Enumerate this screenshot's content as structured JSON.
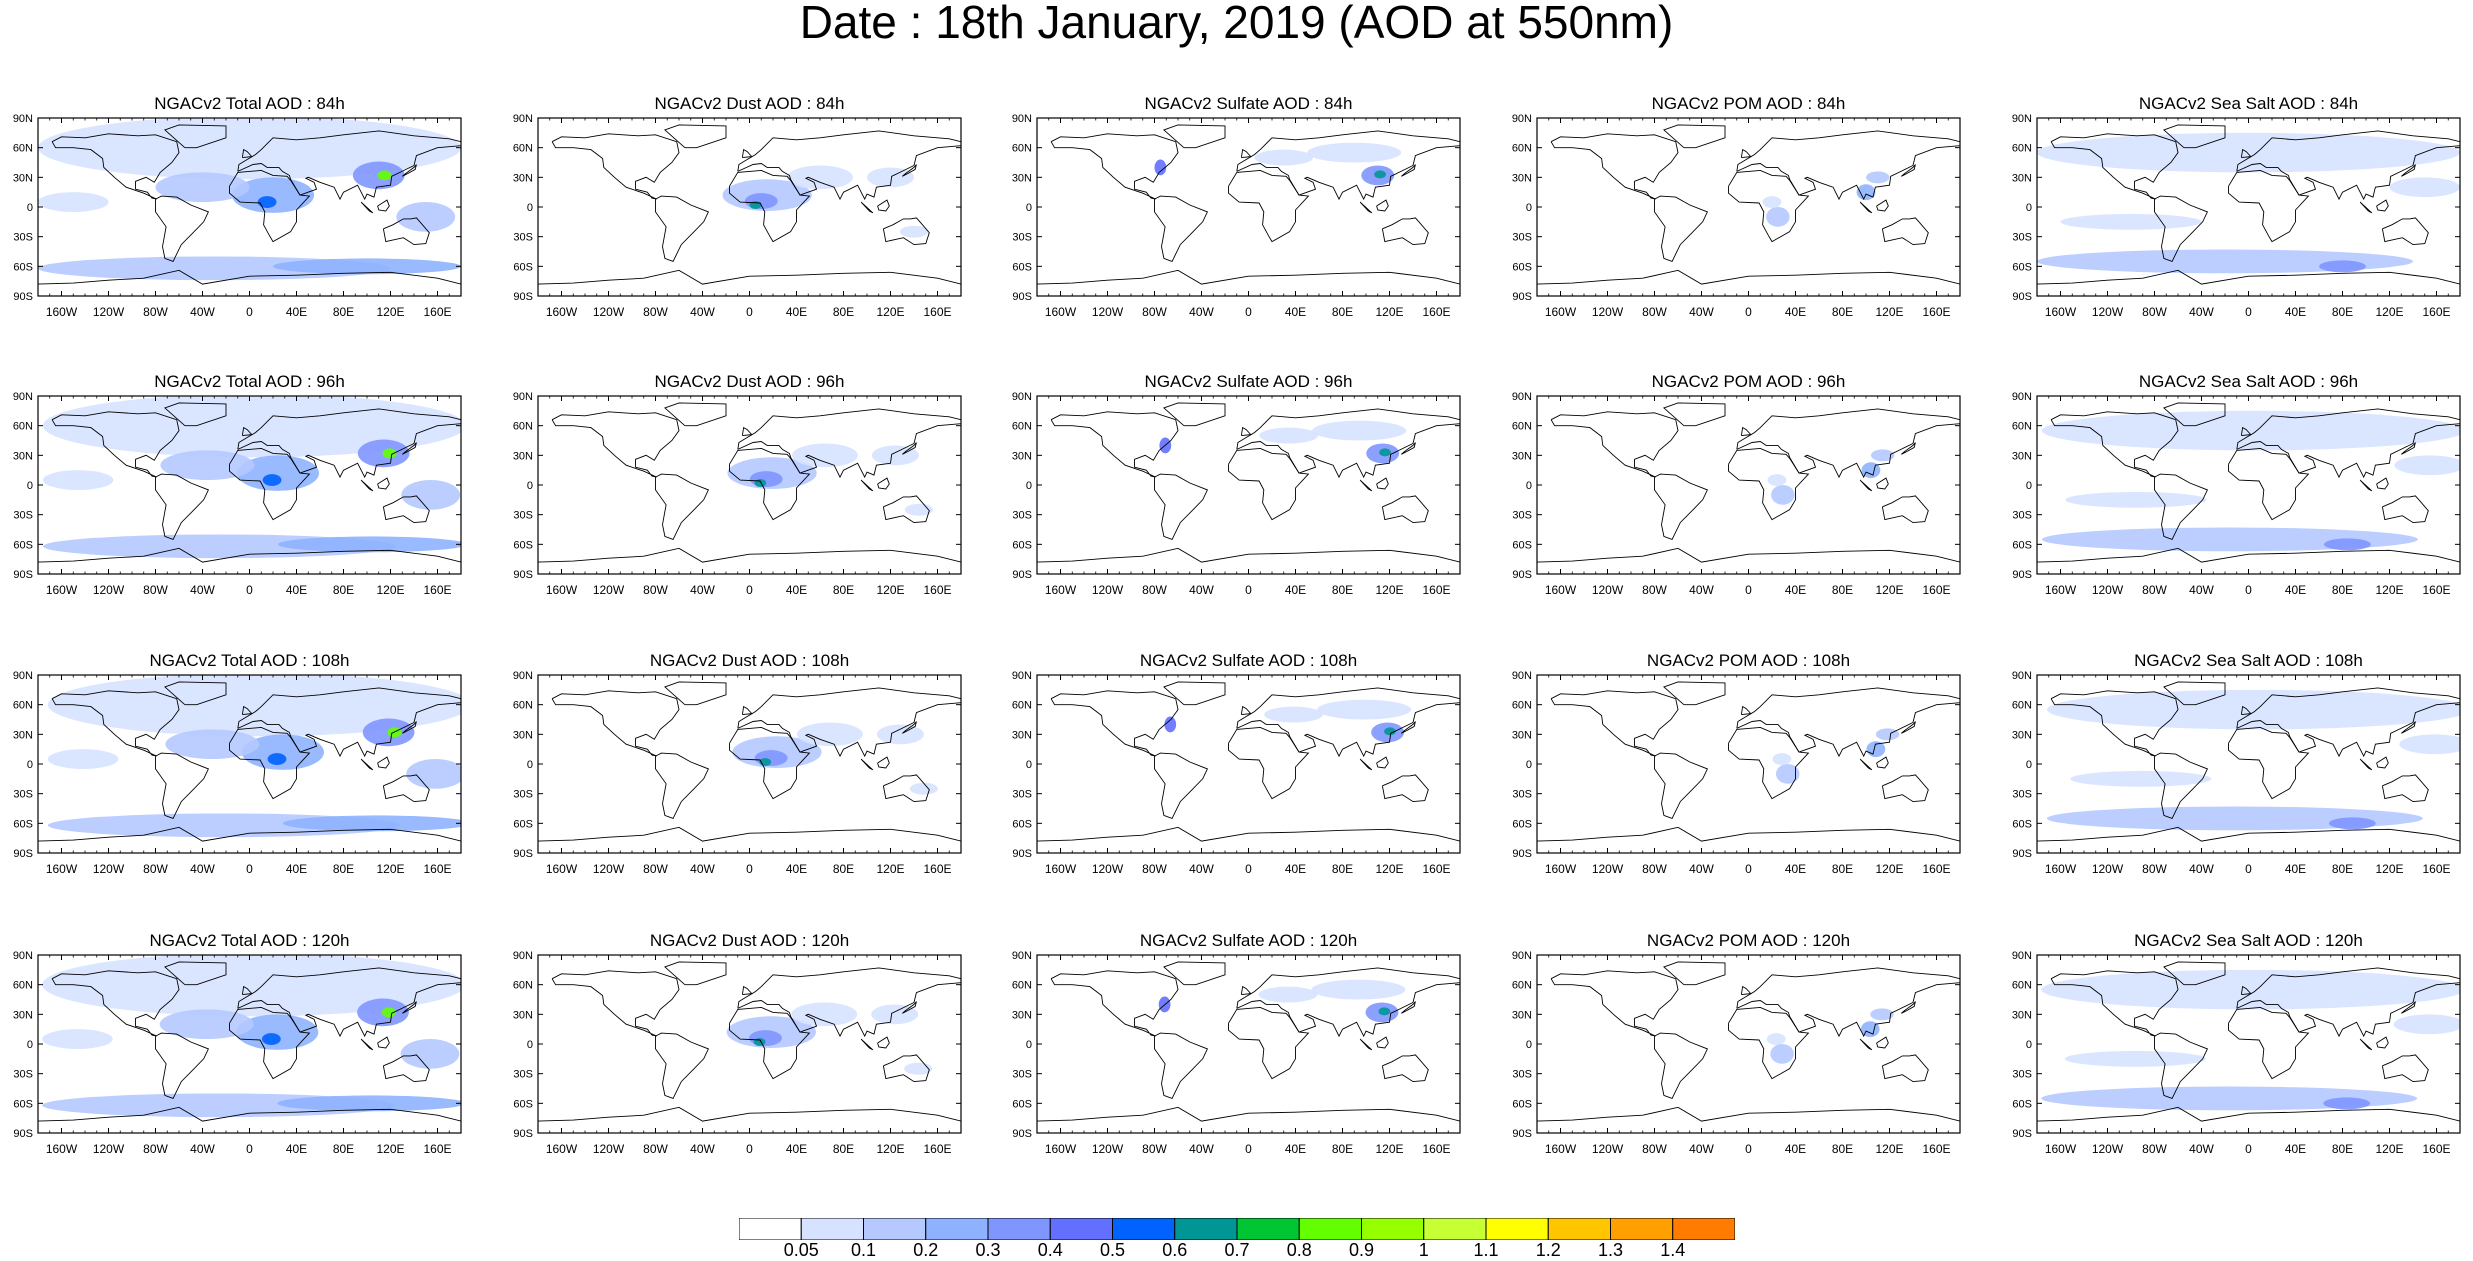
{
  "title": "Date : 18th January, 2019 (AOD at 550nm)",
  "lat_ticks": [
    "90N",
    "60N",
    "30N",
    "0",
    "30S",
    "60S",
    "90S"
  ],
  "lon_ticks": [
    "160W",
    "120W",
    "80W",
    "40W",
    "0",
    "40E",
    "80E",
    "120E",
    "160E"
  ],
  "lon_tick_values": [
    -160,
    -120,
    -80,
    -40,
    0,
    40,
    80,
    120,
    160
  ],
  "lat_tick_values": [
    90,
    60,
    30,
    0,
    -30,
    -60,
    -90
  ],
  "species": [
    "Total",
    "Dust",
    "Sulfate",
    "POM",
    "Sea Salt"
  ],
  "forecast_hours": [
    "84h",
    "96h",
    "108h",
    "120h"
  ],
  "panels": [
    [
      "NGACv2 Total AOD : 84h",
      "NGACv2 Dust AOD : 84h",
      "NGACv2 Sulfate AOD : 84h",
      "NGACv2 POM AOD : 84h",
      "NGACv2 Sea Salt AOD : 84h"
    ],
    [
      "NGACv2 Total AOD : 96h",
      "NGACv2 Dust AOD : 96h",
      "NGACv2 Sulfate AOD : 96h",
      "NGACv2 POM AOD : 96h",
      "NGACv2 Sea Salt AOD : 96h"
    ],
    [
      "NGACv2 Total AOD : 108h",
      "NGACv2 Dust AOD : 108h",
      "NGACv2 Sulfate AOD : 108h",
      "NGACv2 POM AOD : 108h",
      "NGACv2 Sea Salt AOD : 108h"
    ],
    [
      "NGACv2 Total AOD : 120h",
      "NGACv2 Dust AOD : 120h",
      "NGACv2 Sulfate AOD : 120h",
      "NGACv2 POM AOD : 120h",
      "NGACv2 Sea Salt  AOD : 120h"
    ]
  ],
  "colorbar": {
    "labels": [
      "0.05",
      "0.1",
      "0.2",
      "0.3",
      "0.4",
      "0.5",
      "0.6",
      "0.7",
      "0.8",
      "0.9",
      "1",
      "1.1",
      "1.2",
      "1.3",
      "1.4"
    ],
    "colors": [
      "#ffffff",
      "#d6e2ff",
      "#b5c9ff",
      "#8eb2ff",
      "#7f96ff",
      "#6370ff",
      "#0063ff",
      "#009696",
      "#00c633",
      "#63ff00",
      "#96ff00",
      "#c6ff33",
      "#ffff00",
      "#ffc600",
      "#ffa000",
      "#ff7c00",
      "#ff1900"
    ]
  },
  "colors": {
    "land_outline": "#000000",
    "low_aod": "#d6e2ff",
    "mid_aod": "#8eb2ff",
    "high_aod": "#6370ff"
  }
}
